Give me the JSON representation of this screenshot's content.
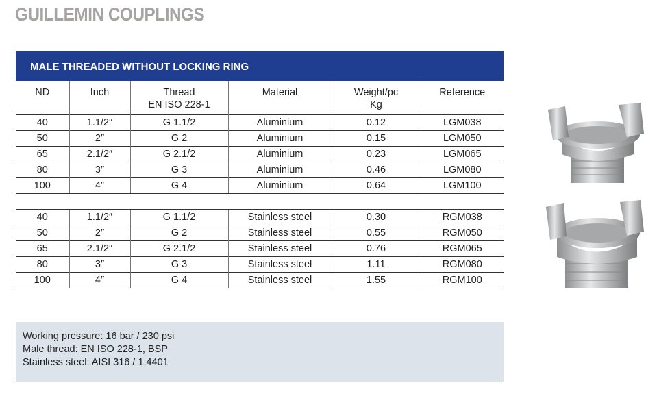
{
  "title": "GUILLEMIN COUPLINGS",
  "section": "MALE THREADED WITHOUT LOCKING RING",
  "headers": {
    "nd": "ND",
    "inch": "Inch",
    "thread": "Thread",
    "thread_std": "EN ISO 228-1",
    "material": "Material",
    "weight": "Weight/pc",
    "weight_unit": "Kg",
    "reference": "Reference"
  },
  "aluminium": [
    [
      "40",
      "1.1/2″",
      "G 1.1/2",
      "Aluminium",
      "0.12",
      "LGM038"
    ],
    [
      "50",
      "2″",
      "G 2",
      "Aluminium",
      "0.15",
      "LGM050"
    ],
    [
      "65",
      "2.1/2″",
      "G 2.1/2",
      "Aluminium",
      "0.23",
      "LGM065"
    ],
    [
      "80",
      "3″",
      "G 3",
      "Aluminium",
      "0.46",
      "LGM080"
    ],
    [
      "100",
      "4″",
      "G 4",
      "Aluminium",
      "0.64",
      "LGM100"
    ]
  ],
  "stainless": [
    [
      "40",
      "1.1/2″",
      "G 1.1/2",
      "Stainless steel",
      "0.30",
      "RGM038"
    ],
    [
      "50",
      "2″",
      "G 2",
      "Stainless steel",
      "0.55",
      "RGM050"
    ],
    [
      "65",
      "2.1/2″",
      "G 2.1/2",
      "Stainless steel",
      "0.76",
      "RGM065"
    ],
    [
      "80",
      "3″",
      "G 3",
      "Stainless steel",
      "1.11",
      "RGM080"
    ],
    [
      "100",
      "4″",
      "G 4",
      "Stainless steel",
      "1.55",
      "RGM100"
    ]
  ],
  "info": [
    "Working pressure:  16 bar / 230 psi",
    "Male thread: EN ISO 228-1, BSP",
    "Stainless steel: AISI 316 / 1.4401"
  ]
}
